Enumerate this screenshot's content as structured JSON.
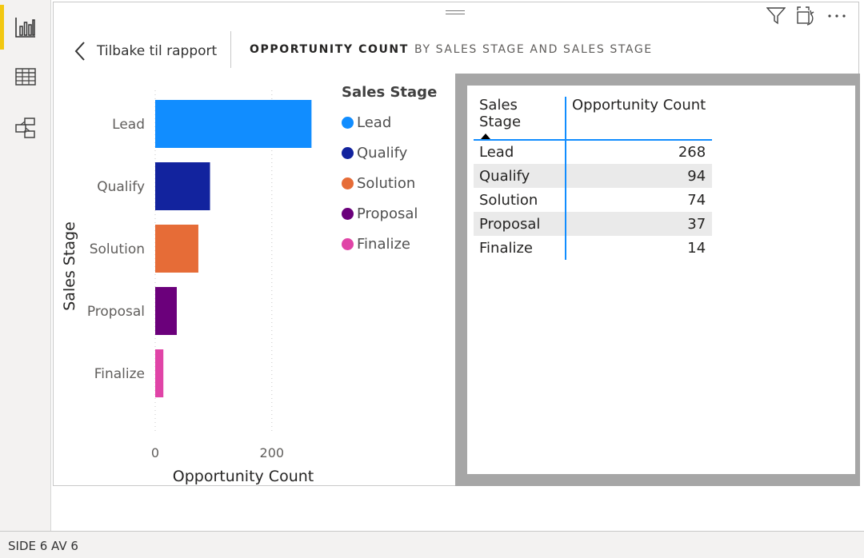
{
  "rail": {
    "items": [
      {
        "name": "report-view",
        "icon": "bar-chart-icon",
        "active": true
      },
      {
        "name": "data-view",
        "icon": "table-grid-icon",
        "active": false
      },
      {
        "name": "model-view",
        "icon": "model-diagram-icon",
        "active": false
      }
    ]
  },
  "header": {
    "back_label": "Tilbake til rapport",
    "title": "OPPORTUNITY COUNT",
    "subtitle": "BY SALES STAGE AND SALES STAGE"
  },
  "top_icons": [
    "filter-icon",
    "focus-mode-icon",
    "more-options-icon"
  ],
  "chart_data": {
    "type": "bar",
    "orientation": "horizontal",
    "categories": [
      "Lead",
      "Qualify",
      "Solution",
      "Proposal",
      "Finalize"
    ],
    "values": [
      268,
      94,
      74,
      37,
      14
    ],
    "colors": [
      "#118dff",
      "#12239e",
      "#e66c37",
      "#6b007b",
      "#e044a7"
    ],
    "xlabel": "Opportunity Count",
    "ylabel": "Sales Stage",
    "xlim": [
      0,
      268
    ],
    "xticks": [
      0,
      200
    ],
    "xtick_labels": [
      "0",
      "200"
    ],
    "grid": true,
    "legend": {
      "title": "Sales Stage",
      "placement": "right",
      "entries": [
        "Lead",
        "Qualify",
        "Solution",
        "Proposal",
        "Finalize"
      ]
    }
  },
  "table": {
    "headers": [
      "Sales Stage",
      "Opportunity Count"
    ],
    "sort_column": "Sales Stage",
    "rows": [
      {
        "stage": "Lead",
        "count": "268"
      },
      {
        "stage": "Qualify",
        "count": "94"
      },
      {
        "stage": "Solution",
        "count": "74"
      },
      {
        "stage": "Proposal",
        "count": "37"
      },
      {
        "stage": "Finalize",
        "count": "14"
      }
    ]
  },
  "status": {
    "page_indicator": "SIDE 6 AV 6"
  }
}
